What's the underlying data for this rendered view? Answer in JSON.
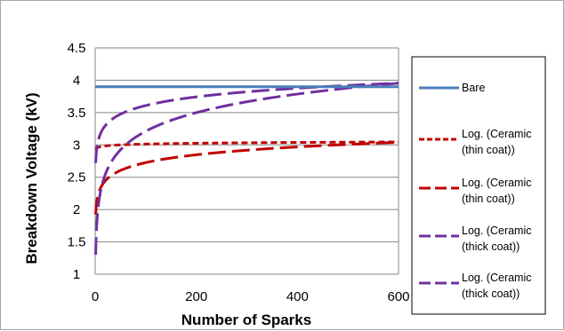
{
  "chart_data": {
    "type": "line",
    "title": "",
    "xlabel": "Number of Sparks",
    "ylabel": "Breakdown Voltage (kV)",
    "xlim": [
      0,
      600
    ],
    "ylim": [
      1,
      4.5
    ],
    "x_ticks": [
      0,
      200,
      400,
      600
    ],
    "y_ticks": [
      1,
      1.5,
      2,
      2.5,
      3,
      3.5,
      4,
      4.5
    ],
    "x_tick_labels": [
      "0",
      "200",
      "400",
      "600"
    ],
    "y_tick_labels": [
      "1",
      "1.5",
      "2",
      "2.5",
      "3",
      "3.5",
      "4",
      "4.5"
    ],
    "grid": "horizontal",
    "legend_position": "right",
    "series": [
      {
        "name": "Bare",
        "style": "solid",
        "color": "#4a7ebb",
        "model": "constant",
        "params": {
          "value": 3.9
        }
      },
      {
        "name": "Log. (Ceramic (thin coat))",
        "style": "short-dash",
        "color": "#c00000",
        "model": "log",
        "params": {
          "a": 2.93,
          "b": 0.018
        },
        "x_range": [
          1,
          600
        ]
      },
      {
        "name": "Log. (Ceramic (thin coat))",
        "style": "long-dash",
        "color": "#c00000",
        "model": "log",
        "params": {
          "a": 1.92,
          "b": 0.175
        },
        "x_range": [
          1,
          600
        ]
      },
      {
        "name": "Log. (Ceramic (thick coat))",
        "style": "long-dash",
        "color": "#7030a0",
        "model": "log",
        "params": {
          "a": 1.3,
          "b": 0.415
        },
        "x_range": [
          1,
          600
        ]
      },
      {
        "name": "Log. (Ceramic (thick coat))",
        "style": "long-dash",
        "color": "#7030a0",
        "model": "log",
        "params": {
          "a": 2.72,
          "b": 0.193
        },
        "x_range": [
          1,
          600
        ]
      }
    ],
    "legend": [
      {
        "lines": [
          "Bare"
        ]
      },
      {
        "lines": [
          "Log. (Ceramic",
          "(thin coat))"
        ]
      },
      {
        "lines": [
          "Log. (Ceramic",
          "(thin coat))"
        ]
      },
      {
        "lines": [
          "Log. (Ceramic",
          "(thick coat))"
        ]
      },
      {
        "lines": [
          "Log. (Ceramic",
          "(thick coat))"
        ]
      }
    ]
  }
}
